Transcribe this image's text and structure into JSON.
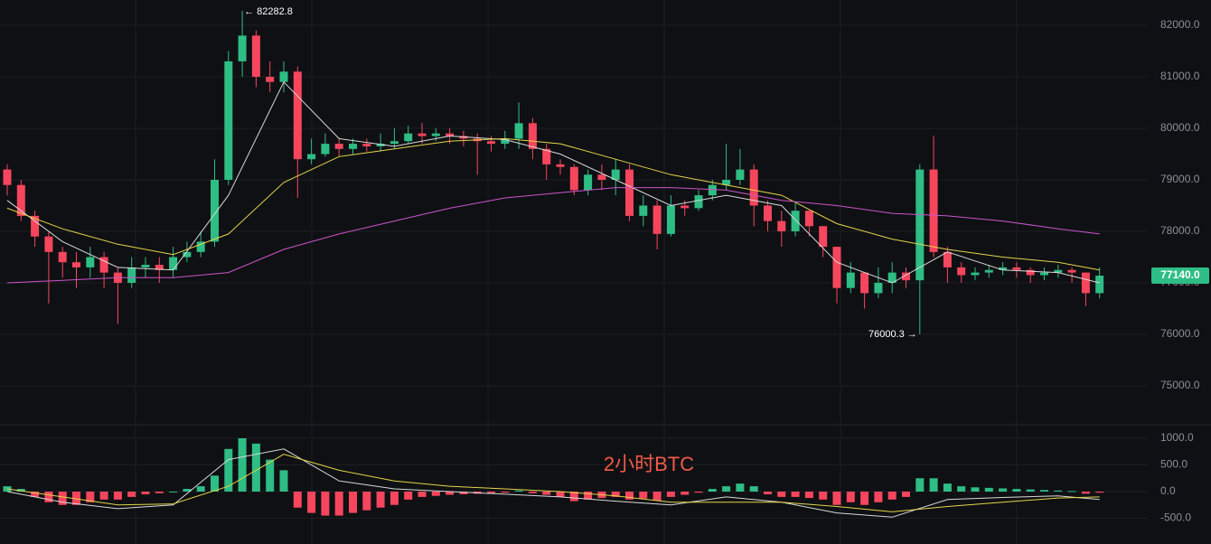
{
  "chart_data": [
    {
      "type": "candlestick",
      "up_color": "#2ebd85",
      "down_color": "#f6465d",
      "ylim": [
        74246,
        82491
      ],
      "yticks": [
        {
          "value": 82000,
          "label": "82000.0"
        },
        {
          "value": 81000,
          "label": "81000.0"
        },
        {
          "value": 80000,
          "label": "80000.0"
        },
        {
          "value": 79000,
          "label": "79000.0"
        },
        {
          "value": 78000,
          "label": "78000.0"
        },
        {
          "value": 77000,
          "label": "77000.0"
        },
        {
          "value": 76000,
          "label": "76000.0"
        },
        {
          "value": 75000,
          "label": "75000.0"
        }
      ],
      "grid": true,
      "open": [
        79200,
        78900,
        78300,
        77900,
        77600,
        77400,
        77300,
        77500,
        77200,
        77000,
        77300,
        77350,
        77250,
        77500,
        77600,
        77800,
        79000,
        81300,
        81800,
        81000,
        80900,
        81100,
        79400,
        79500,
        79700,
        79600,
        79700,
        79650,
        79700,
        79750,
        79900,
        79850,
        79900,
        79850,
        79800,
        79750,
        79700,
        79800,
        80100,
        79600,
        79300,
        79250,
        78800,
        79100,
        79000,
        79200,
        78300,
        78500,
        77950,
        78500,
        78450,
        78700,
        78900,
        79000,
        79200,
        78500,
        78200,
        78000,
        78400,
        78100,
        77700,
        76900,
        77200,
        76800,
        77000,
        77200,
        77050,
        79200,
        77600,
        77300,
        77150,
        77200,
        77250,
        77300,
        77250,
        77150,
        77200,
        77250,
        77200,
        76800
      ],
      "high": [
        79300,
        79000,
        78400,
        78000,
        77700,
        77600,
        77700,
        77600,
        77300,
        77500,
        77500,
        77500,
        77700,
        77800,
        78000,
        79400,
        81500,
        82282.8,
        81900,
        81300,
        81300,
        81200,
        79800,
        79900,
        79800,
        79800,
        79800,
        79900,
        80000,
        80050,
        80100,
        80000,
        80000,
        79950,
        79900,
        79850,
        79950,
        80500,
        80200,
        79700,
        79400,
        79300,
        79200,
        79300,
        79400,
        79300,
        78700,
        78600,
        78700,
        78600,
        78800,
        79000,
        79700,
        79600,
        79300,
        78600,
        78400,
        78550,
        78400,
        78100,
        77700,
        77400,
        77200,
        77300,
        77400,
        77300,
        79300,
        79850,
        77700,
        77400,
        77300,
        77350,
        77400,
        77400,
        77300,
        77300,
        77350,
        77300,
        77200,
        77300
      ],
      "low": [
        78700,
        78200,
        77700,
        76600,
        77100,
        76900,
        77100,
        76900,
        76200,
        76900,
        77100,
        77000,
        77100,
        77400,
        77500,
        77700,
        78900,
        81000,
        80800,
        80700,
        80700,
        78650,
        79300,
        79450,
        79450,
        79500,
        79550,
        79550,
        79600,
        79700,
        79700,
        79750,
        79700,
        79650,
        79100,
        79550,
        79600,
        79600,
        79400,
        79000,
        79100,
        78700,
        78700,
        78800,
        78700,
        78200,
        78100,
        77650,
        77900,
        78300,
        78400,
        78600,
        78800,
        78900,
        78100,
        78000,
        77700,
        77900,
        77900,
        77500,
        76600,
        76800,
        76500,
        76700,
        76800,
        76900,
        76000.3,
        77500,
        77000,
        77000,
        77050,
        77100,
        77150,
        77100,
        77000,
        77050,
        77100,
        77000,
        76550,
        76700
      ],
      "close": [
        78900,
        78300,
        77900,
        77600,
        77400,
        77300,
        77500,
        77200,
        77000,
        77300,
        77350,
        77250,
        77500,
        77600,
        77800,
        79000,
        81300,
        81800,
        81000,
        80900,
        81100,
        79400,
        79500,
        79700,
        79600,
        79700,
        79650,
        79700,
        79750,
        79900,
        79850,
        79900,
        79850,
        79800,
        79750,
        79700,
        79800,
        80100,
        79600,
        79300,
        79250,
        78800,
        79100,
        79000,
        79200,
        78300,
        78500,
        77950,
        78500,
        78450,
        78700,
        78900,
        79000,
        79200,
        78500,
        78200,
        78000,
        78400,
        78100,
        77700,
        76900,
        77200,
        76800,
        77000,
        77200,
        77050,
        79200,
        77600,
        77300,
        77150,
        77200,
        77250,
        77300,
        77250,
        77150,
        77200,
        77250,
        77200,
        76800,
        77140
      ],
      "lines": [
        {
          "color": "#d8d8d8",
          "x": [
            0,
            4,
            8,
            12,
            16,
            20,
            24,
            28,
            32,
            36,
            40,
            44,
            48,
            52,
            56,
            60,
            64,
            68,
            72,
            76,
            79
          ],
          "values": [
            78600,
            77800,
            77300,
            77250,
            78700,
            80900,
            79800,
            79650,
            79850,
            79780,
            79500,
            79000,
            78500,
            78700,
            78500,
            77400,
            77000,
            77600,
            77250,
            77200,
            77000
          ]
        },
        {
          "color": "#e3d44a",
          "x": [
            0,
            4,
            8,
            12,
            16,
            20,
            24,
            28,
            32,
            36,
            40,
            44,
            48,
            52,
            56,
            60,
            64,
            68,
            72,
            76,
            79
          ],
          "values": [
            78450,
            78050,
            77750,
            77550,
            77950,
            78950,
            79450,
            79600,
            79750,
            79800,
            79700,
            79400,
            79100,
            78900,
            78700,
            78150,
            77850,
            77650,
            77500,
            77400,
            77250
          ]
        },
        {
          "color": "#cc55cc",
          "x": [
            0,
            4,
            8,
            12,
            16,
            20,
            24,
            28,
            32,
            36,
            40,
            44,
            48,
            52,
            56,
            60,
            64,
            68,
            72,
            76,
            79
          ],
          "values": [
            77000,
            77050,
            77100,
            77100,
            77200,
            77650,
            77950,
            78200,
            78450,
            78650,
            78750,
            78850,
            78850,
            78800,
            78600,
            78500,
            78350,
            78300,
            78200,
            78050,
            77950
          ]
        }
      ],
      "annotations": [
        {
          "text": "← 82282.8",
          "value": 82282.8
        },
        {
          "text": "76000.3 →",
          "value": 76000.3
        }
      ],
      "last_price": {
        "value": 77140,
        "label": "77140.0",
        "color": "#2ebd85"
      }
    },
    {
      "type": "macd",
      "ylim": [
        -983,
        1254
      ],
      "yticks": [
        {
          "value": 1000,
          "label": "1000.0"
        },
        {
          "value": 500,
          "label": "500.0"
        },
        {
          "value": 0,
          "label": "0.0"
        },
        {
          "value": -500,
          "label": "-500.0"
        }
      ],
      "up_color": "#2ebd85",
      "down_color": "#f6465d",
      "histogram": [
        100,
        50,
        -100,
        -200,
        -250,
        -250,
        -200,
        -150,
        -150,
        -100,
        -50,
        -30,
        0,
        50,
        100,
        300,
        800,
        1000,
        900,
        600,
        400,
        -300,
        -400,
        -450,
        -450,
        -400,
        -350,
        -300,
        -250,
        -150,
        -100,
        -80,
        -60,
        -50,
        -40,
        -30,
        -20,
        20,
        -30,
        -60,
        -100,
        -180,
        -150,
        -120,
        -100,
        -150,
        -130,
        -170,
        -100,
        -60,
        -20,
        50,
        100,
        150,
        100,
        -50,
        -100,
        -100,
        -120,
        -150,
        -250,
        -200,
        -250,
        -200,
        -150,
        -100,
        250,
        250,
        150,
        100,
        80,
        70,
        60,
        50,
        40,
        30,
        20,
        10,
        -40,
        -20
      ],
      "lines": [
        {
          "color": "#d8d8d8",
          "x": [
            0,
            4,
            8,
            12,
            16,
            20,
            24,
            28,
            32,
            36,
            40,
            44,
            48,
            52,
            56,
            60,
            64,
            68,
            72,
            76,
            79
          ],
          "values": [
            0,
            -200,
            -320,
            -250,
            600,
            800,
            200,
            50,
            0,
            -50,
            -100,
            -180,
            -250,
            -100,
            -200,
            -400,
            -480,
            -150,
            -110,
            -80,
            -150
          ]
        },
        {
          "color": "#e3d44a",
          "x": [
            0,
            4,
            8,
            12,
            16,
            20,
            24,
            28,
            32,
            36,
            40,
            44,
            48,
            52,
            56,
            60,
            64,
            68,
            72,
            76,
            79
          ],
          "values": [
            50,
            -100,
            -250,
            -230,
            100,
            700,
            400,
            200,
            100,
            50,
            0,
            -80,
            -200,
            -200,
            -200,
            -280,
            -380,
            -280,
            -200,
            -120,
            -100
          ]
        }
      ],
      "watermark": "2小时BTC"
    }
  ]
}
